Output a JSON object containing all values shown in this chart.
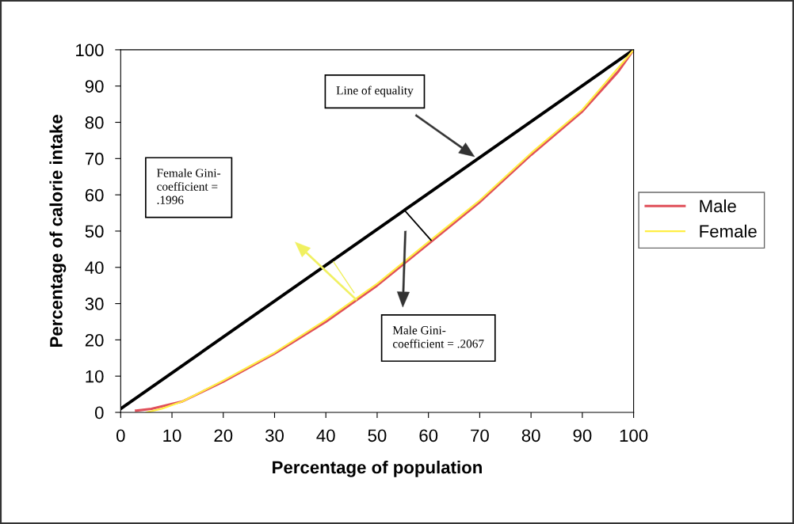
{
  "chart_data": {
    "type": "line",
    "xlabel": "Percentage of population",
    "ylabel": "Percentage of calorie intake",
    "xlim": [
      0,
      100
    ],
    "ylim": [
      0,
      100
    ],
    "xticks": [
      0,
      10,
      20,
      30,
      40,
      50,
      60,
      70,
      80,
      90,
      100
    ],
    "yticks": [
      0,
      10,
      20,
      30,
      40,
      50,
      60,
      70,
      80,
      90,
      100
    ],
    "grid": false,
    "legend": "right",
    "marker": "none",
    "line_style": "solid",
    "series": [
      {
        "color": "#000000",
        "x": [
          0,
          100
        ],
        "values": [
          1,
          100
        ]
      },
      {
        "name": "Male",
        "color": "#e0505a",
        "x": [
          3,
          6,
          12,
          20,
          30,
          40,
          50,
          60,
          70,
          80,
          90,
          97,
          100
        ],
        "values": [
          0.5,
          1,
          3,
          8.5,
          16.2,
          25,
          35,
          46.5,
          58,
          71,
          83,
          94,
          100
        ]
      },
      {
        "name": "Female",
        "color": "#ffee44",
        "x": [
          5,
          8,
          12,
          20,
          30,
          40,
          50,
          60,
          70,
          80,
          90,
          97,
          100
        ],
        "values": [
          0,
          1,
          3,
          8.8,
          16.5,
          25.5,
          35.5,
          47,
          58.5,
          71.5,
          83.5,
          95,
          100
        ]
      }
    ],
    "annotations": [
      "Line of equality",
      "Female Gini-\ncoefficient =\n.1996",
      "Male Gini-\ncoefficient = .2067"
    ]
  }
}
